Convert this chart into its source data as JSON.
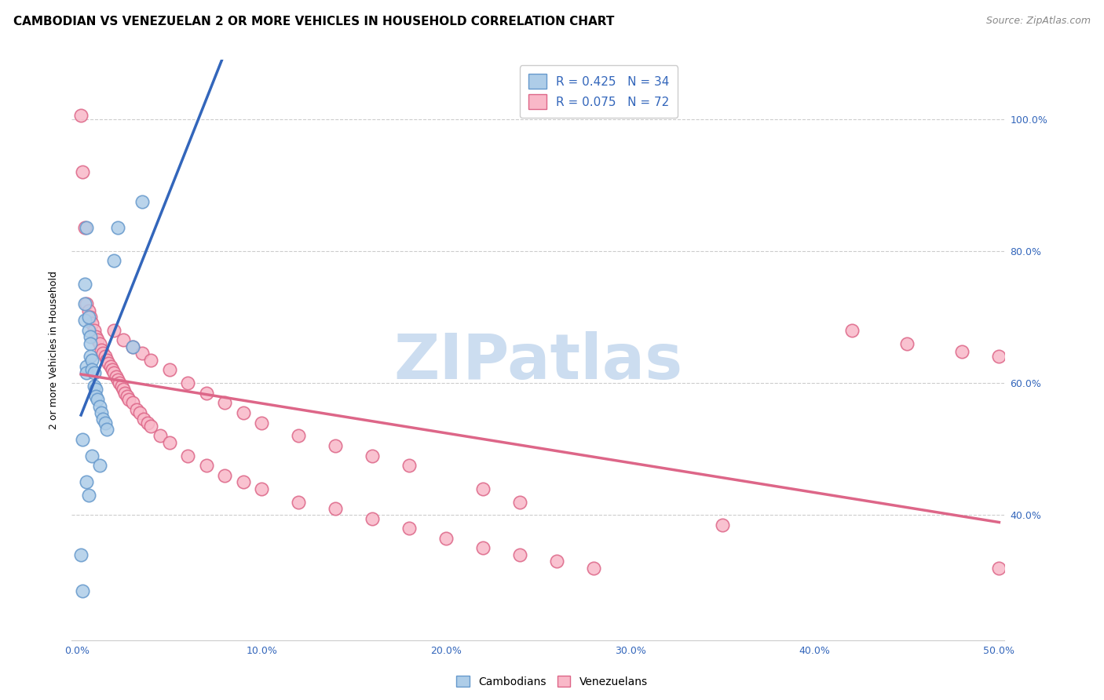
{
  "title": "CAMBODIAN VS VENEZUELAN 2 OR MORE VEHICLES IN HOUSEHOLD CORRELATION CHART",
  "source": "Source: ZipAtlas.com",
  "ylabel_label": "2 or more Vehicles in Household",
  "x_ticks": [
    0.0,
    0.1,
    0.2,
    0.3,
    0.4,
    0.5
  ],
  "x_tick_labels": [
    "0.0%",
    "10.0%",
    "20.0%",
    "30.0%",
    "40.0%",
    "50.0%"
  ],
  "y_ticks": [
    0.4,
    0.6,
    0.8,
    1.0
  ],
  "y_tick_labels": [
    "40.0%",
    "60.0%",
    "80.0%",
    "100.0%"
  ],
  "xlim": [
    -0.003,
    0.503
  ],
  "ylim": [
    0.21,
    1.09
  ],
  "cambodian_color": "#aecde8",
  "venezuelan_color": "#f9b8c8",
  "cambodian_edge": "#6699cc",
  "venezuelan_edge": "#dd6688",
  "blue_line_color": "#3366bb",
  "pink_line_color": "#dd6688",
  "dashed_line_color": "#aaaaaa",
  "R_cambodian": 0.425,
  "N_cambodian": 34,
  "R_venezuelan": 0.075,
  "N_venezuelan": 72,
  "legend_cambodian_label": "Cambodians",
  "legend_venezuelan_label": "Venezuelans",
  "watermark_text": "ZIPatlas",
  "watermark_color": "#ccddf0",
  "title_fontsize": 11,
  "source_fontsize": 9,
  "ylabel_fontsize": 9,
  "tick_fontsize": 9,
  "legend_fontsize": 11,
  "cambodian_x": [
    0.002,
    0.003,
    0.003,
    0.004,
    0.004,
    0.004,
    0.005,
    0.005,
    0.005,
    0.006,
    0.006,
    0.007,
    0.007,
    0.007,
    0.008,
    0.008,
    0.009,
    0.009,
    0.01,
    0.01,
    0.011,
    0.012,
    0.013,
    0.014,
    0.015,
    0.016,
    0.02,
    0.022,
    0.03,
    0.035,
    0.005,
    0.006,
    0.008,
    0.012
  ],
  "cambodian_y": [
    0.34,
    0.515,
    0.285,
    0.75,
    0.72,
    0.695,
    0.835,
    0.625,
    0.615,
    0.7,
    0.68,
    0.67,
    0.66,
    0.64,
    0.635,
    0.62,
    0.615,
    0.595,
    0.59,
    0.58,
    0.575,
    0.565,
    0.555,
    0.545,
    0.54,
    0.53,
    0.785,
    0.835,
    0.655,
    0.875,
    0.45,
    0.43,
    0.49,
    0.475
  ],
  "venezuelan_x": [
    0.002,
    0.003,
    0.004,
    0.005,
    0.006,
    0.007,
    0.008,
    0.009,
    0.01,
    0.011,
    0.012,
    0.013,
    0.014,
    0.015,
    0.016,
    0.017,
    0.018,
    0.019,
    0.02,
    0.021,
    0.022,
    0.023,
    0.024,
    0.025,
    0.026,
    0.027,
    0.028,
    0.03,
    0.032,
    0.034,
    0.036,
    0.038,
    0.04,
    0.045,
    0.05,
    0.06,
    0.07,
    0.08,
    0.09,
    0.1,
    0.12,
    0.14,
    0.16,
    0.18,
    0.2,
    0.22,
    0.24,
    0.26,
    0.28,
    0.02,
    0.025,
    0.03,
    0.035,
    0.04,
    0.05,
    0.06,
    0.07,
    0.08,
    0.09,
    0.1,
    0.12,
    0.14,
    0.16,
    0.18,
    0.22,
    0.24,
    0.35,
    0.42,
    0.45,
    0.48,
    0.5,
    0.5
  ],
  "venezuelan_y": [
    1.005,
    0.92,
    0.835,
    0.72,
    0.71,
    0.7,
    0.69,
    0.68,
    0.67,
    0.665,
    0.66,
    0.65,
    0.645,
    0.64,
    0.635,
    0.63,
    0.625,
    0.62,
    0.615,
    0.61,
    0.605,
    0.6,
    0.595,
    0.59,
    0.585,
    0.58,
    0.575,
    0.57,
    0.56,
    0.555,
    0.545,
    0.54,
    0.535,
    0.52,
    0.51,
    0.49,
    0.475,
    0.46,
    0.45,
    0.44,
    0.42,
    0.41,
    0.395,
    0.38,
    0.365,
    0.35,
    0.34,
    0.33,
    0.32,
    0.68,
    0.665,
    0.655,
    0.645,
    0.635,
    0.62,
    0.6,
    0.585,
    0.57,
    0.555,
    0.54,
    0.52,
    0.505,
    0.49,
    0.475,
    0.44,
    0.42,
    0.385,
    0.68,
    0.66,
    0.648,
    0.64,
    0.32
  ]
}
